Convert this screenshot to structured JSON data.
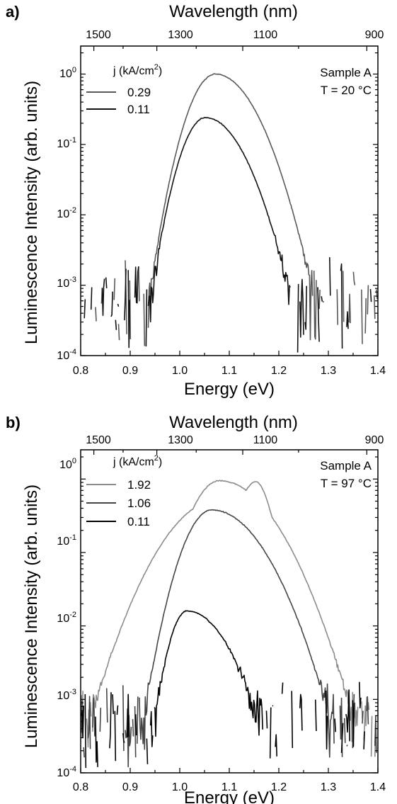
{
  "chart_data": [
    {
      "type": "line",
      "panel_label": "a)",
      "xlabel": "Energy (eV)",
      "ylabel": "Luminescence Intensity (arb. units)",
      "top_xlabel": "Wavelength (nm)",
      "xlim": [
        0.8,
        1.4
      ],
      "ylim": [
        0.0001,
        2.5
      ],
      "yscale": "log",
      "x_ticks": [
        "0.8",
        "0.9",
        "1.0",
        "1.1",
        "1.2",
        "1.3",
        "1.4"
      ],
      "y_ticks": [
        {
          "base": "10",
          "exp": "-4"
        },
        {
          "base": "10",
          "exp": "-3"
        },
        {
          "base": "10",
          "exp": "-2"
        },
        {
          "base": "10",
          "exp": "-1"
        },
        {
          "base": "10",
          "exp": "0"
        }
      ],
      "top_ticks": [
        "1500",
        "1300",
        "1100",
        "900"
      ],
      "legend_title": "j (kA/cm",
      "legend_title_sup": "2",
      "legend_title_end": ")",
      "legend_position": "top-left",
      "annotation": [
        "Sample A",
        "T = 20 °C"
      ],
      "noise_floor": 0.0008,
      "series": [
        {
          "name": "0.29",
          "color": "#595959",
          "peak_x": 1.072,
          "peak_y": 1.0,
          "s1": 0.035,
          "s2": 0.052
        },
        {
          "name": "0.11",
          "color": "#111111",
          "peak_x": 1.052,
          "peak_y": 0.24,
          "s1": 0.032,
          "s2": 0.05
        }
      ]
    },
    {
      "type": "line",
      "panel_label": "b)",
      "xlabel": "Energy (eV)",
      "ylabel": "Luminescence Intensity (arb. units)",
      "top_xlabel": "Wavelength (nm)",
      "xlim": [
        0.8,
        1.4
      ],
      "ylim": [
        0.0001,
        2.5
      ],
      "yscale": "log",
      "x_ticks": [
        "0.8",
        "0.9",
        "1.0",
        "1.1",
        "1.2",
        "1.3",
        "1.4"
      ],
      "y_ticks": [
        {
          "base": "10",
          "exp": "-4"
        },
        {
          "base": "10",
          "exp": "-3"
        },
        {
          "base": "10",
          "exp": "-2"
        },
        {
          "base": "10",
          "exp": "-1"
        },
        {
          "base": "10",
          "exp": "0"
        }
      ],
      "top_ticks": [
        "1500",
        "1300",
        "1100",
        "900"
      ],
      "legend_title": "j (kA/cm",
      "legend_title_sup": "2",
      "legend_title_end": ")",
      "legend_position": "top-left",
      "annotation": [
        "Sample A",
        "T = 97 °C"
      ],
      "noise_floor": 0.0006,
      "series": [
        {
          "name": "1.92",
          "color": "#8c8c8c",
          "peak_x": 1.08,
          "peak_y": 0.95,
          "s1": 0.04,
          "s2": 0.07,
          "peak2_x": 1.155,
          "peak2_y": 0.62
        },
        {
          "name": "1.06",
          "color": "#454545",
          "peak_x": 1.065,
          "peak_y": 0.38,
          "s1": 0.038,
          "s2": 0.066
        },
        {
          "name": "0.11",
          "color": "#000000",
          "peak_x": 1.015,
          "peak_y": 0.016,
          "s1": 0.025,
          "s2": 0.055
        }
      ]
    }
  ]
}
